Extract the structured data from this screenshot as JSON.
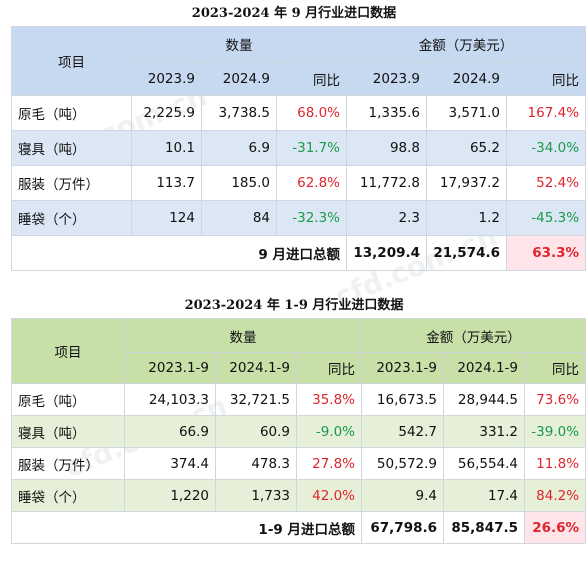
{
  "table1": {
    "title": "2023-2024 年 9 月行业进口数据",
    "item_header": "项目",
    "qty_header": "数量",
    "amt_header": "金额（万美元）",
    "col": [
      "2023.9",
      "2024.9",
      "同比",
      "2023.9",
      "2024.9",
      "同比"
    ],
    "rows": [
      {
        "name": "原毛（吨）",
        "q1": "2,225.9",
        "q2": "3,738.5",
        "qy": "68.0%",
        "a1": "1,335.6",
        "a2": "3,571.0",
        "ay": "167.4%"
      },
      {
        "name": "寝具（吨）",
        "q1": "10.1",
        "q2": "6.9",
        "qy": "-31.7%",
        "a1": "98.8",
        "a2": "65.2",
        "ay": "-34.0%"
      },
      {
        "name": "服装（万件）",
        "q1": "113.7",
        "q2": "185.0",
        "qy": "62.8%",
        "a1": "11,772.8",
        "a2": "17,937.2",
        "ay": "52.4%"
      },
      {
        "name": "睡袋（个）",
        "q1": "124",
        "q2": "84",
        "qy": "-32.3%",
        "a1": "2.3",
        "a2": "1.2",
        "ay": "-45.3%"
      }
    ],
    "total_label": "9 月进口总额",
    "total_a1": "13,209.4",
    "total_a2": "21,574.6",
    "total_ay": "63.3%"
  },
  "table2": {
    "title": "2023-2024 年 1-9 月行业进口数据",
    "item_header": "项目",
    "qty_header": "数量",
    "amt_header": "金额（万美元）",
    "col": [
      "2023.1-9",
      "2024.1-9",
      "同比",
      "2023.1-9",
      "2024.1-9",
      "同比"
    ],
    "rows": [
      {
        "name": "原毛（吨）",
        "q1": "24,103.3",
        "q2": "32,721.5",
        "qy": "35.8%",
        "a1": "16,673.5",
        "a2": "28,944.5",
        "ay": "73.6%"
      },
      {
        "name": "寝具（吨）",
        "q1": "66.9",
        "q2": "60.9",
        "qy": "-9.0%",
        "a1": "542.7",
        "a2": "331.2",
        "ay": "-39.0%"
      },
      {
        "name": "服装（万件）",
        "q1": "374.4",
        "q2": "478.3",
        "qy": "27.8%",
        "a1": "50,572.9",
        "a2": "56,554.4",
        "ay": "11.8%"
      },
      {
        "name": "睡袋（个）",
        "q1": "1,220",
        "q2": "1,733",
        "qy": "42.0%",
        "a1": "9.4",
        "a2": "17.4",
        "ay": "84.2%"
      }
    ],
    "total_label": "1-9 月进口总额",
    "total_a1": "67,798.6",
    "total_a2": "85,847.5",
    "total_ay": "26.6%"
  },
  "colors": {
    "positive": "#e0252e",
    "negative": "#1b9a4b",
    "table1_header": "#c6d9f1",
    "table2_header": "#c6e0a8"
  }
}
